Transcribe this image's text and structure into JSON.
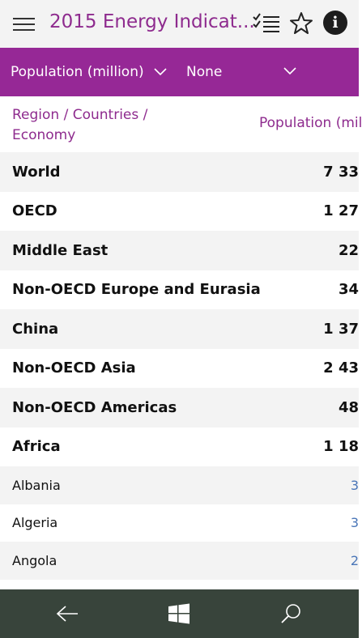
{
  "header": {
    "title": "2015 Energy Indicat...",
    "icons": [
      "menu-icon",
      "checklist-icon",
      "star-icon",
      "info-icon"
    ],
    "info_glyph": "i"
  },
  "filters": {
    "indicator": "Population (million)",
    "secondary": "None"
  },
  "table": {
    "columns": [
      "Region / Countries / Economy",
      "Population (mil"
    ],
    "rows": [
      {
        "name": "World",
        "value": "7 33",
        "bold": true
      },
      {
        "name": "OECD",
        "value": "1 27",
        "bold": true
      },
      {
        "name": "Middle East",
        "value": "22",
        "bold": true
      },
      {
        "name": "Non-OECD Europe and Eurasia",
        "value": "34",
        "bold": true
      },
      {
        "name": "China",
        "value": "1 37",
        "bold": true
      },
      {
        "name": "Non-OECD Asia",
        "value": "2 43",
        "bold": true
      },
      {
        "name": "Non-OECD Americas",
        "value": "48",
        "bold": true
      },
      {
        "name": "Africa",
        "value": "1 18",
        "bold": true
      },
      {
        "name": "Albania",
        "value": "3",
        "bold": false
      },
      {
        "name": "Algeria",
        "value": "3",
        "bold": false
      },
      {
        "name": "Angola",
        "value": "2",
        "bold": false
      }
    ]
  },
  "colors": {
    "accent": "#962896",
    "title": "#8e2b8e",
    "link_value": "#4a76b8",
    "navbar": "#38443b"
  },
  "navbar": {
    "icons": [
      "back-arrow-icon",
      "windows-logo-icon",
      "search-icon"
    ]
  }
}
